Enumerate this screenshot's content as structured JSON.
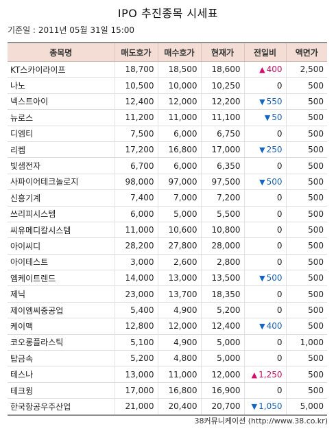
{
  "title": "IPO 추진종목 시세표",
  "base_date": {
    "label": "기준일 :",
    "value": "2011년 05월 31일 15:00"
  },
  "table": {
    "headers": [
      "종목명",
      "매도호가",
      "매수호가",
      "현재가",
      "전일비",
      "액면가"
    ],
    "rows": [
      {
        "name": "KT스카이라이프",
        "ask": "18,700",
        "bid": "18,500",
        "price": "18,600",
        "dir": "up",
        "change": "400",
        "par": "2,500"
      },
      {
        "name": "나노",
        "ask": "10,500",
        "bid": "10,000",
        "price": "10,250",
        "dir": "none",
        "change": "0",
        "par": "500"
      },
      {
        "name": "넥스트아이",
        "ask": "12,400",
        "bid": "12,000",
        "price": "12,200",
        "dir": "down",
        "change": "550",
        "par": "500"
      },
      {
        "name": "뉴로스",
        "ask": "11,200",
        "bid": "11,000",
        "price": "11,100",
        "dir": "down",
        "change": "50",
        "par": "500"
      },
      {
        "name": "디엠티",
        "ask": "7,500",
        "bid": "6,000",
        "price": "6,750",
        "dir": "none",
        "change": "0",
        "par": "500"
      },
      {
        "name": "리켐",
        "ask": "17,200",
        "bid": "16,800",
        "price": "17,000",
        "dir": "down",
        "change": "250",
        "par": "500"
      },
      {
        "name": "빛샘전자",
        "ask": "6,700",
        "bid": "6,000",
        "price": "6,350",
        "dir": "none",
        "change": "0",
        "par": "500"
      },
      {
        "name": "사파이어테크놀로지",
        "ask": "98,000",
        "bid": "97,000",
        "price": "97,500",
        "dir": "down",
        "change": "500",
        "par": "500"
      },
      {
        "name": "신흥기계",
        "ask": "7,400",
        "bid": "7,000",
        "price": "7,200",
        "dir": "none",
        "change": "0",
        "par": "500"
      },
      {
        "name": "쓰리피시스템",
        "ask": "6,000",
        "bid": "5,000",
        "price": "5,500",
        "dir": "none",
        "change": "0",
        "par": "500"
      },
      {
        "name": "씨유메디칼시스템",
        "ask": "11,000",
        "bid": "10,600",
        "price": "10,800",
        "dir": "none",
        "change": "0",
        "par": "500"
      },
      {
        "name": "아이씨디",
        "ask": "28,200",
        "bid": "27,800",
        "price": "28,000",
        "dir": "none",
        "change": "0",
        "par": "500"
      },
      {
        "name": "아이테스트",
        "ask": "3,000",
        "bid": "2,600",
        "price": "2,800",
        "dir": "none",
        "change": "0",
        "par": "500"
      },
      {
        "name": "엠케이트렌드",
        "ask": "14,000",
        "bid": "13,000",
        "price": "13,500",
        "dir": "down",
        "change": "500",
        "par": "500"
      },
      {
        "name": "제닉",
        "ask": "23,000",
        "bid": "13,700",
        "price": "18,350",
        "dir": "none",
        "change": "0",
        "par": "500"
      },
      {
        "name": "제이엠씨중공업",
        "ask": "5,400",
        "bid": "4,900",
        "price": "5,200",
        "dir": "none",
        "change": "0",
        "par": "500"
      },
      {
        "name": "케이맥",
        "ask": "12,800",
        "bid": "12,000",
        "price": "12,400",
        "dir": "down",
        "change": "400",
        "par": "500"
      },
      {
        "name": "코오롱플라스틱",
        "ask": "5,100",
        "bid": "4,900",
        "price": "5,000",
        "dir": "none",
        "change": "0",
        "par": "1,000"
      },
      {
        "name": "탑금속",
        "ask": "5,200",
        "bid": "4,800",
        "price": "5,000",
        "dir": "none",
        "change": "0",
        "par": "500"
      },
      {
        "name": "테스나",
        "ask": "13,000",
        "bid": "11,000",
        "price": "12,000",
        "dir": "up",
        "change": "1,250",
        "par": "500"
      },
      {
        "name": "테크윙",
        "ask": "17,000",
        "bid": "16,800",
        "price": "16,900",
        "dir": "none",
        "change": "0",
        "par": "500"
      },
      {
        "name": "한국항공우주산업",
        "ask": "21,000",
        "bid": "20,400",
        "price": "20,700",
        "dir": "down",
        "change": "1,050",
        "par": "5,000"
      }
    ]
  },
  "arrows": {
    "up": "▲",
    "down": "▼"
  },
  "colors": {
    "header_bg": "#f3ddd5",
    "up": "#d20d6b",
    "down": "#1566c0"
  },
  "source": "38커뮤니케이션 (http://www.38.co.kr)"
}
